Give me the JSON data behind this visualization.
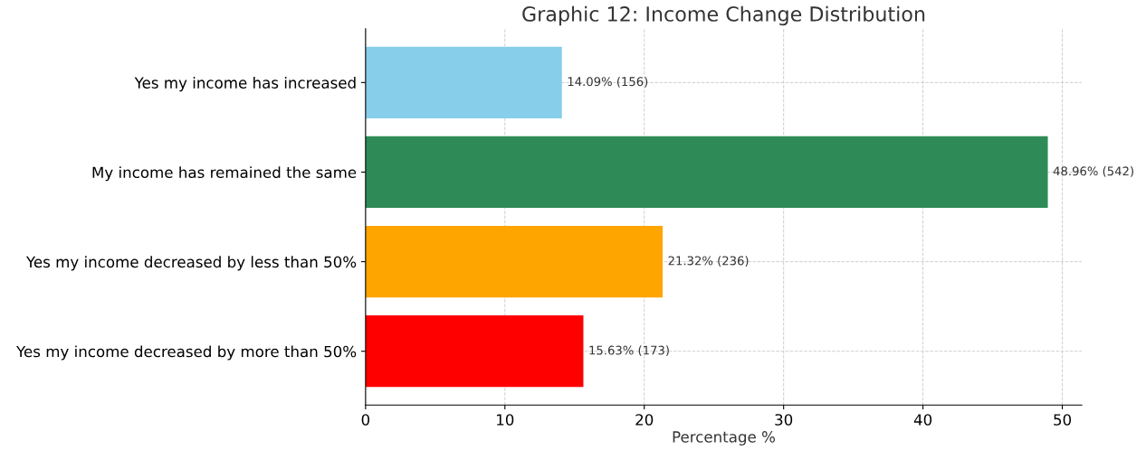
{
  "chart_data": {
    "type": "bar",
    "orientation": "horizontal",
    "title": "Graphic 12: Income Change Distribution",
    "xlabel": "Percentage %",
    "categories": [
      "Yes my income has increased",
      "My income has remained the same",
      "Yes my income decreased by less than 50%",
      "Yes my income decreased by more than 50%"
    ],
    "values": [
      14.09,
      48.96,
      21.32,
      15.63
    ],
    "colors": [
      "#87ceeb",
      "#2e8b57",
      "#ffa500",
      "#ff0000"
    ],
    "value_labels": [
      "14.09% (156)",
      "48.96% (542)",
      "21.32% (236)",
      "15.63% (173)"
    ],
    "xlim": [
      0,
      51.4
    ],
    "xticks": [
      0,
      10,
      20,
      30,
      40,
      50
    ],
    "grid": true
  }
}
